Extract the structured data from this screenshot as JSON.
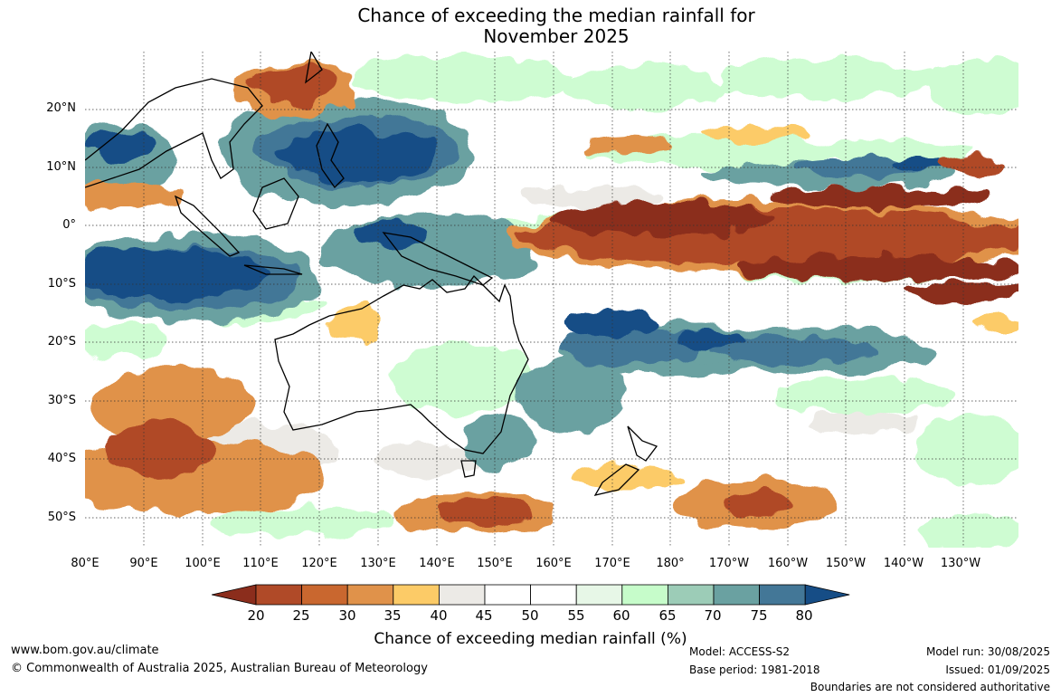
{
  "title": {
    "line1": "Chance of exceeding the median rainfall for",
    "line2": "November 2025"
  },
  "map": {
    "lat_labels": [
      "20°N",
      "10°N",
      "0°",
      "10°S",
      "20°S",
      "30°S",
      "40°S",
      "50°S"
    ],
    "lon_labels": [
      "80°E",
      "90°E",
      "100°E",
      "110°E",
      "120°E",
      "130°E",
      "140°E",
      "150°E",
      "160°E",
      "170°E",
      "180°",
      "170°W",
      "160°W",
      "150°W",
      "140°W",
      "130°W"
    ]
  },
  "colorbar": {
    "ticks": [
      "20",
      "25",
      "30",
      "35",
      "40",
      "45",
      "50",
      "55",
      "60",
      "65",
      "70",
      "75",
      "80"
    ],
    "colors": [
      "#8b2d1c",
      "#b04a28",
      "#c9672f",
      "#e0924a",
      "#fccb67",
      "#eceae6",
      "#ffffff",
      "#ffffff",
      "#e7f7e7",
      "#c6fcca",
      "#9cccb7",
      "#6aa1a1",
      "#437797",
      "#164d86"
    ],
    "label": "Chance of exceeding median rainfall (%)"
  },
  "footer": {
    "website": "www.bom.gov.au/climate",
    "copyright": "© Commonwealth of Australia 2025, Australian Bureau of Meteorology",
    "model": "Model: ACCESS-S2",
    "base_period": "Base period: 1981-2018",
    "model_run": "Model run: 30/08/2025",
    "issued": "Issued: 01/09/2025",
    "disclaimer": "Boundaries are not considered authoritative"
  }
}
